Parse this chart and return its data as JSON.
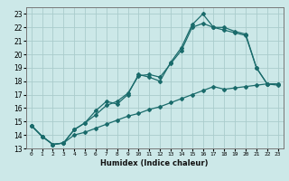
{
  "xlabel": "Humidex (Indice chaleur)",
  "background_color": "#cce8e8",
  "grid_color": "#aacccc",
  "line_color": "#1a6b6b",
  "xlim": [
    -0.5,
    23.5
  ],
  "ylim": [
    13,
    23.5
  ],
  "yticks": [
    13,
    14,
    15,
    16,
    17,
    18,
    19,
    20,
    21,
    22,
    23
  ],
  "xticks": [
    0,
    1,
    2,
    3,
    4,
    5,
    6,
    7,
    8,
    9,
    10,
    11,
    12,
    13,
    14,
    15,
    16,
    17,
    18,
    19,
    20,
    21,
    22,
    23
  ],
  "line1_y": [
    14.7,
    13.9,
    13.3,
    13.4,
    14.4,
    14.9,
    15.8,
    16.5,
    16.3,
    17.0,
    18.5,
    18.3,
    18.0,
    19.4,
    20.5,
    22.2,
    23.0,
    22.0,
    22.0,
    21.7,
    21.5,
    19.0,
    17.8,
    17.8
  ],
  "line2_y": [
    14.7,
    13.9,
    13.3,
    13.4,
    14.4,
    14.9,
    15.5,
    16.2,
    16.5,
    17.1,
    18.4,
    18.5,
    18.3,
    19.3,
    20.3,
    22.0,
    22.3,
    22.0,
    21.8,
    21.6,
    21.4,
    19.0,
    17.8,
    17.7
  ],
  "line3_y": [
    14.7,
    13.9,
    13.3,
    13.4,
    14.0,
    14.2,
    14.5,
    14.8,
    15.1,
    15.4,
    15.6,
    15.9,
    16.1,
    16.4,
    16.7,
    17.0,
    17.3,
    17.6,
    17.4,
    17.5,
    17.6,
    17.7,
    17.8,
    17.8
  ]
}
